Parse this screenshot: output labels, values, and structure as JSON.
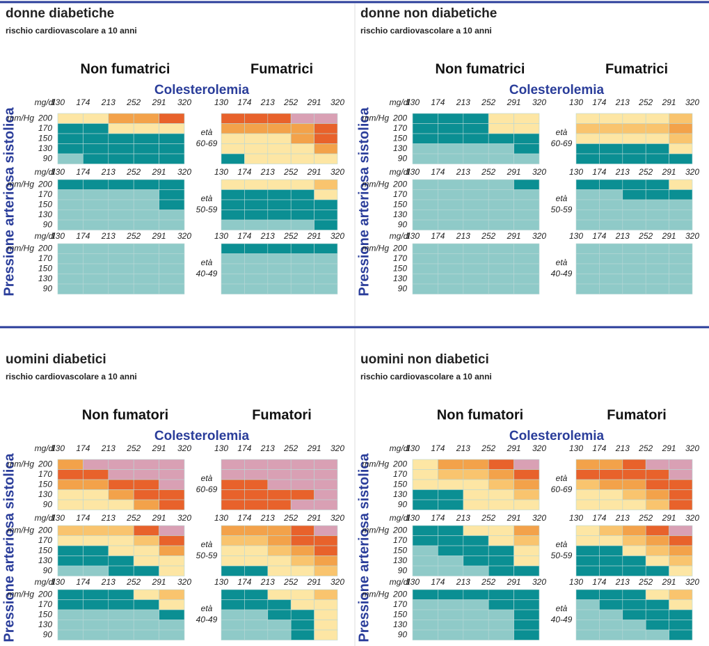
{
  "colesterolemia": "Colesterolemia",
  "vertical_label": "Pressione arteriosa sistolica",
  "age_prefix": "età",
  "chol_unit": "mg/dl",
  "bp_unit": "mm/Hg",
  "cholesterol": [
    130,
    174,
    213,
    252,
    291,
    320
  ],
  "pressure": [
    200,
    170,
    150,
    130,
    90
  ],
  "ages": [
    "60-69",
    "50-59",
    "40-49"
  ],
  "palette": [
    "#8fcac8",
    "#0b8f93",
    "#fde6a4",
    "#f9c46e",
    "#f3a24a",
    "#e8622b",
    "#d9a0b4"
  ],
  "panels": [
    {
      "title": "donne diabetiche",
      "subtitle": "rischio cardiovascolare a 10 anni",
      "columns": [
        "Non fumatrici",
        "Fumatrici"
      ],
      "grids": [
        [
          [
            "22445",
            "11222",
            "11111",
            "11111",
            "01111"
          ],
          [
            "11111",
            "00001",
            "00001",
            "00000",
            "00000"
          ],
          [
            "00000",
            "00000",
            "00000",
            "00000",
            "00000"
          ]
        ],
        [
          [
            "55566",
            "44445",
            "22245",
            "22224",
            "12222"
          ],
          [
            "22223",
            "11112",
            "11111",
            "11111",
            "00001"
          ],
          [
            "11111",
            "00000",
            "00000",
            "00000",
            "00000"
          ]
        ]
      ]
    },
    {
      "title": "donne non diabetiche",
      "subtitle": "rischio cardiovascolare a 10 anni",
      "columns": [
        "Non fumatrici",
        "Fumatrici"
      ],
      "grids": [
        [
          [
            "11122",
            "11122",
            "11111",
            "00001",
            "00000"
          ],
          [
            "00001",
            "00000",
            "00000",
            "00000",
            "00000"
          ],
          [
            "00000",
            "00000",
            "00000",
            "00000",
            "00000"
          ]
        ],
        [
          [
            "22223",
            "33334",
            "22223",
            "11112",
            "11111"
          ],
          [
            "11112",
            "00111",
            "00000",
            "00000",
            "00000"
          ],
          [
            "00000",
            "00000",
            "00000",
            "00000",
            "00000"
          ]
        ]
      ]
    },
    {
      "title": "uomini diabetici",
      "subtitle": "rischio cardiovascolare a 10 anni",
      "columns": [
        "Non fumatori",
        "Fumatori"
      ],
      "grids": [
        [
          [
            "46666",
            "55666",
            "44556",
            "22455",
            "22245"
          ],
          [
            "33356",
            "22235",
            "11224",
            "11122",
            "00112"
          ],
          [
            "11123",
            "11112",
            "00001",
            "00000",
            "00000"
          ]
        ],
        [
          [
            "66666",
            "66666",
            "55666",
            "55556",
            "55566"
          ],
          [
            "44456",
            "33455",
            "22345",
            "22234",
            "11223"
          ],
          [
            "11223",
            "11122",
            "00112",
            "00012",
            "00012"
          ]
        ]
      ]
    },
    {
      "title": "uomini non diabetici",
      "subtitle": "rischio cardiovascolare a 10 anni",
      "columns": [
        "Non fumatori",
        "Fumatori"
      ],
      "grids": [
        [
          [
            "24456",
            "23345",
            "22234",
            "11223",
            "11222"
          ],
          [
            "11224",
            "11123",
            "01112",
            "00112",
            "00011"
          ],
          [
            "11111",
            "00011",
            "00001",
            "00001",
            "00001"
          ]
        ],
        [
          [
            "44566",
            "55556",
            "34455",
            "22345",
            "22235"
          ],
          [
            "23456",
            "22345",
            "11234",
            "11123",
            "11112"
          ],
          [
            "11123",
            "01112",
            "00111",
            "00011",
            "00001"
          ]
        ]
      ]
    }
  ]
}
